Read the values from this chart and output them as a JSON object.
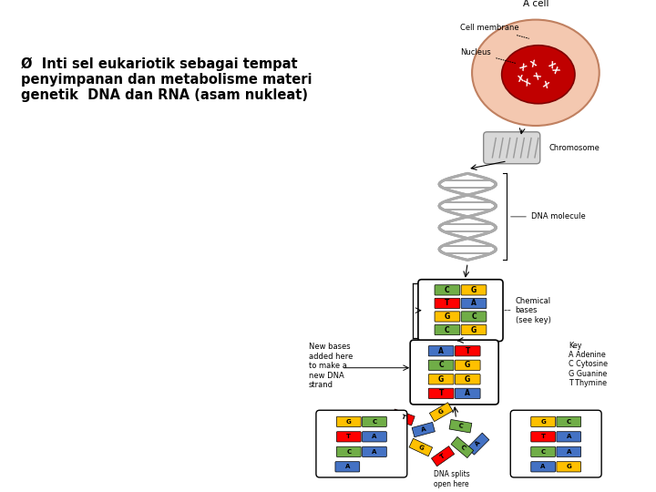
{
  "background_color": "#ffffff",
  "text_bullet": "Ø  Inti sel eukariotik sebagai tempat\npenyimpanan dan metabolisme materi\ngenetik  DNA dan RNA (asam nukleat)",
  "text_fontsize": 10.5,
  "text_color": "#000000",
  "title_cell": "A cell",
  "label_cell_membrane": "Cell membrane",
  "label_nucleus": "Nucleus",
  "label_chromosome": "Chromosome",
  "label_dna_molecule": "DNA molecule",
  "label_chemical_bases": "Chemical\nbases\n(see key)",
  "label_new_bases": "New bases\nadded here\nto make a\nnew DNA\nstrand",
  "label_dna_splits": "DNA splits\nopen here",
  "label_key": "Key\nA Adenine\nC Cytosine\nG Guanine\nT Thymine",
  "color_A": "#4472c4",
  "color_C": "#70ad47",
  "color_G": "#ffc000",
  "color_T": "#ff0000",
  "cell_inner_color": "#c00000",
  "nucleus_color": "#f4c8b0"
}
